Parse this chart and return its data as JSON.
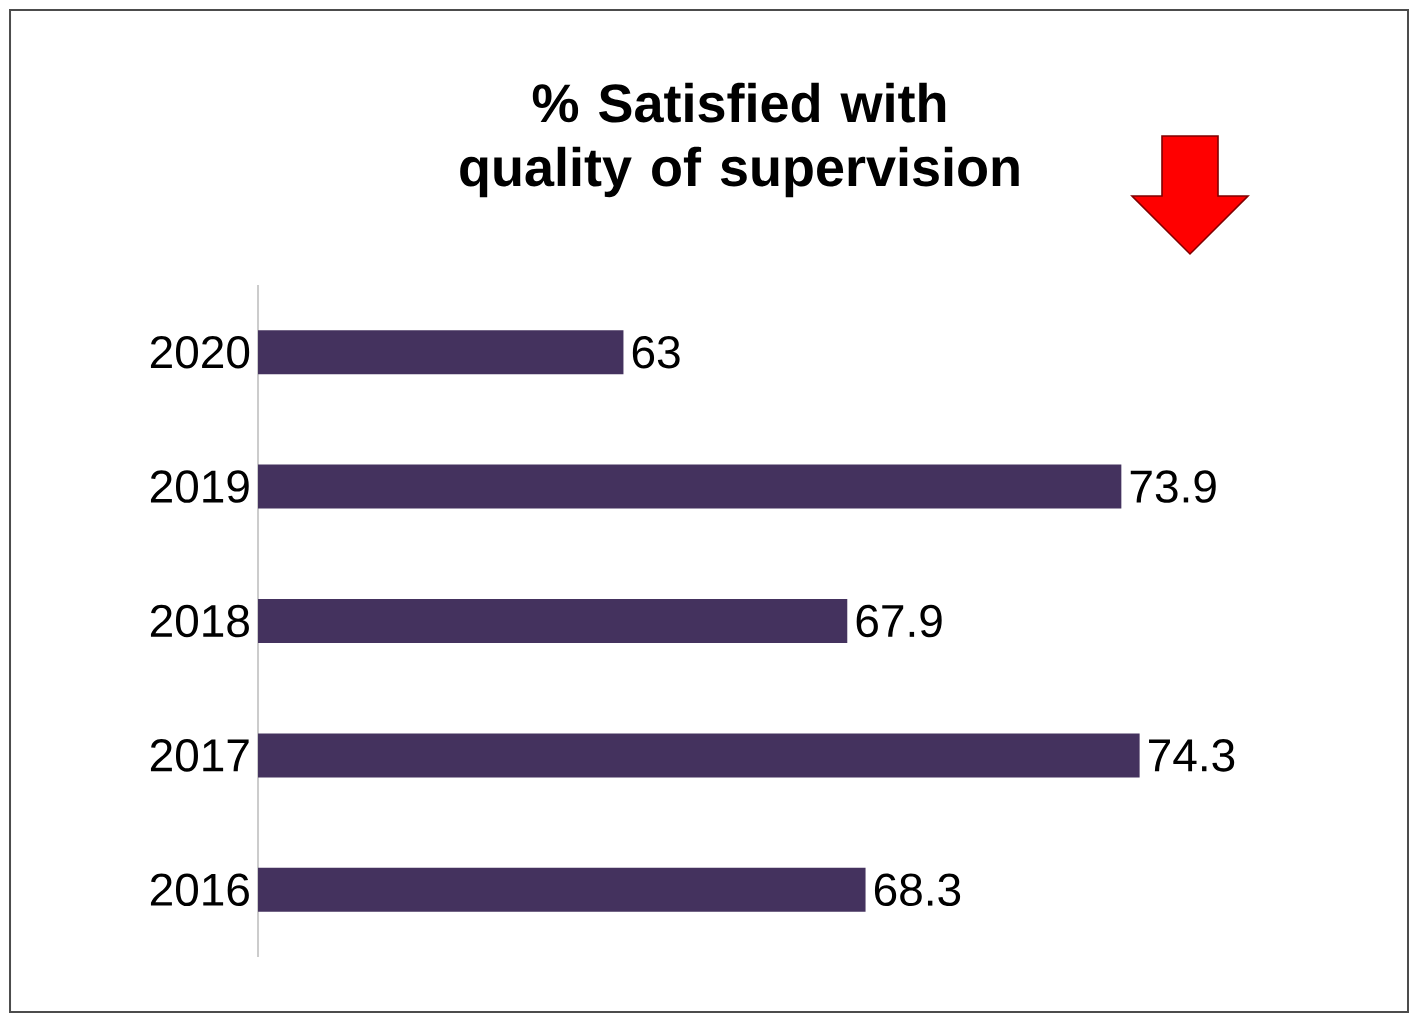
{
  "chart_data": {
    "type": "bar",
    "orientation": "horizontal",
    "title": "% Satisfied with quality of supervision",
    "categories": [
      "2020",
      "2019",
      "2018",
      "2017",
      "2016"
    ],
    "values": [
      63,
      73.9,
      67.9,
      74.3,
      68.3
    ],
    "color": "#44325e",
    "xlim": [
      55,
      80
    ],
    "data_labels": true
  }
}
